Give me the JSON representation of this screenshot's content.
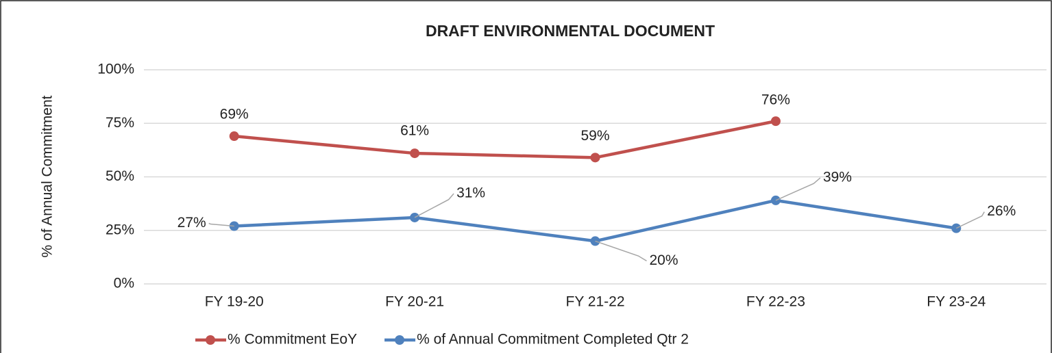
{
  "chart_data": {
    "type": "line",
    "title": "DRAFT ENVIRONMENTAL DOCUMENT",
    "y_label": "% of Annual Commitment",
    "categories": [
      "FY 19-20",
      "FY 20-21",
      "FY 21-22",
      "FY 22-23",
      "FY 23-24"
    ],
    "series": [
      {
        "name": "% Commitment EoY",
        "color": "#c0504d",
        "values": [
          69,
          61,
          59,
          76,
          null
        ],
        "value_labels": [
          "69%",
          "61%",
          "59%",
          "76%",
          null
        ]
      },
      {
        "name": "% of Annual Commitment Completed Qtr 2",
        "color": "#4f81bd",
        "values": [
          27,
          31,
          20,
          39,
          26
        ],
        "value_labels": [
          "27%",
          "31%",
          "20%",
          "39%",
          "26%"
        ]
      }
    ],
    "ylim": [
      0,
      100
    ],
    "yticks": [
      {
        "value": 0,
        "label": "0%"
      },
      {
        "value": 25,
        "label": "25%"
      },
      {
        "value": 50,
        "label": "50%"
      },
      {
        "value": 75,
        "label": "75%"
      },
      {
        "value": 100,
        "label": "100%"
      }
    ],
    "grid": true,
    "legend": "bottom"
  }
}
